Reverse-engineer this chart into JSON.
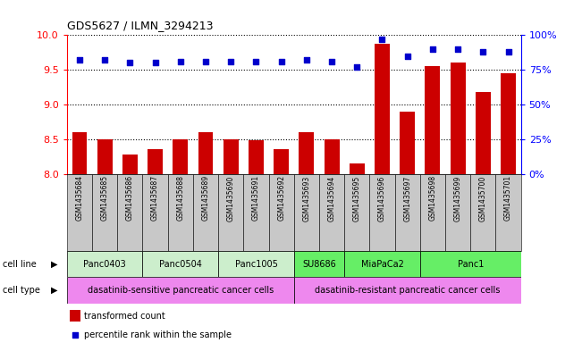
{
  "title": "GDS5627 / ILMN_3294213",
  "samples": [
    "GSM1435684",
    "GSM1435685",
    "GSM1435686",
    "GSM1435687",
    "GSM1435688",
    "GSM1435689",
    "GSM1435690",
    "GSM1435691",
    "GSM1435692",
    "GSM1435693",
    "GSM1435694",
    "GSM1435695",
    "GSM1435696",
    "GSM1435697",
    "GSM1435698",
    "GSM1435699",
    "GSM1435700",
    "GSM1435701"
  ],
  "transformed_count": [
    8.6,
    8.5,
    8.28,
    8.35,
    8.5,
    8.6,
    8.5,
    8.48,
    8.35,
    8.6,
    8.5,
    8.15,
    9.88,
    8.9,
    9.55,
    9.6,
    9.18,
    9.45
  ],
  "percentile_rank": [
    82,
    82,
    80,
    80,
    81,
    81,
    81,
    81,
    81,
    82,
    81,
    77,
    97,
    85,
    90,
    90,
    88,
    88
  ],
  "cell_lines": [
    {
      "name": "Panc0403",
      "start": 0,
      "end": 3,
      "color": "#cceecc"
    },
    {
      "name": "Panc0504",
      "start": 3,
      "end": 6,
      "color": "#cceecc"
    },
    {
      "name": "Panc1005",
      "start": 6,
      "end": 9,
      "color": "#cceecc"
    },
    {
      "name": "SU8686",
      "start": 9,
      "end": 11,
      "color": "#66ee66"
    },
    {
      "name": "MiaPaCa2",
      "start": 11,
      "end": 14,
      "color": "#66ee66"
    },
    {
      "name": "Panc1",
      "start": 14,
      "end": 18,
      "color": "#66ee66"
    }
  ],
  "cell_types": [
    {
      "name": "dasatinib-sensitive pancreatic cancer cells",
      "start": 0,
      "end": 9,
      "color": "#ee88ee"
    },
    {
      "name": "dasatinib-resistant pancreatic cancer cells",
      "start": 9,
      "end": 18,
      "color": "#ee88ee"
    }
  ],
  "ylim_left": [
    8.0,
    10.0
  ],
  "ylim_right": [
    0,
    100
  ],
  "yticks_left": [
    8.0,
    8.5,
    9.0,
    9.5,
    10.0
  ],
  "yticks_right": [
    0,
    25,
    50,
    75,
    100
  ],
  "bar_color": "#cc0000",
  "dot_color": "#0000cc",
  "bar_width": 0.6,
  "background_color": "#ffffff"
}
